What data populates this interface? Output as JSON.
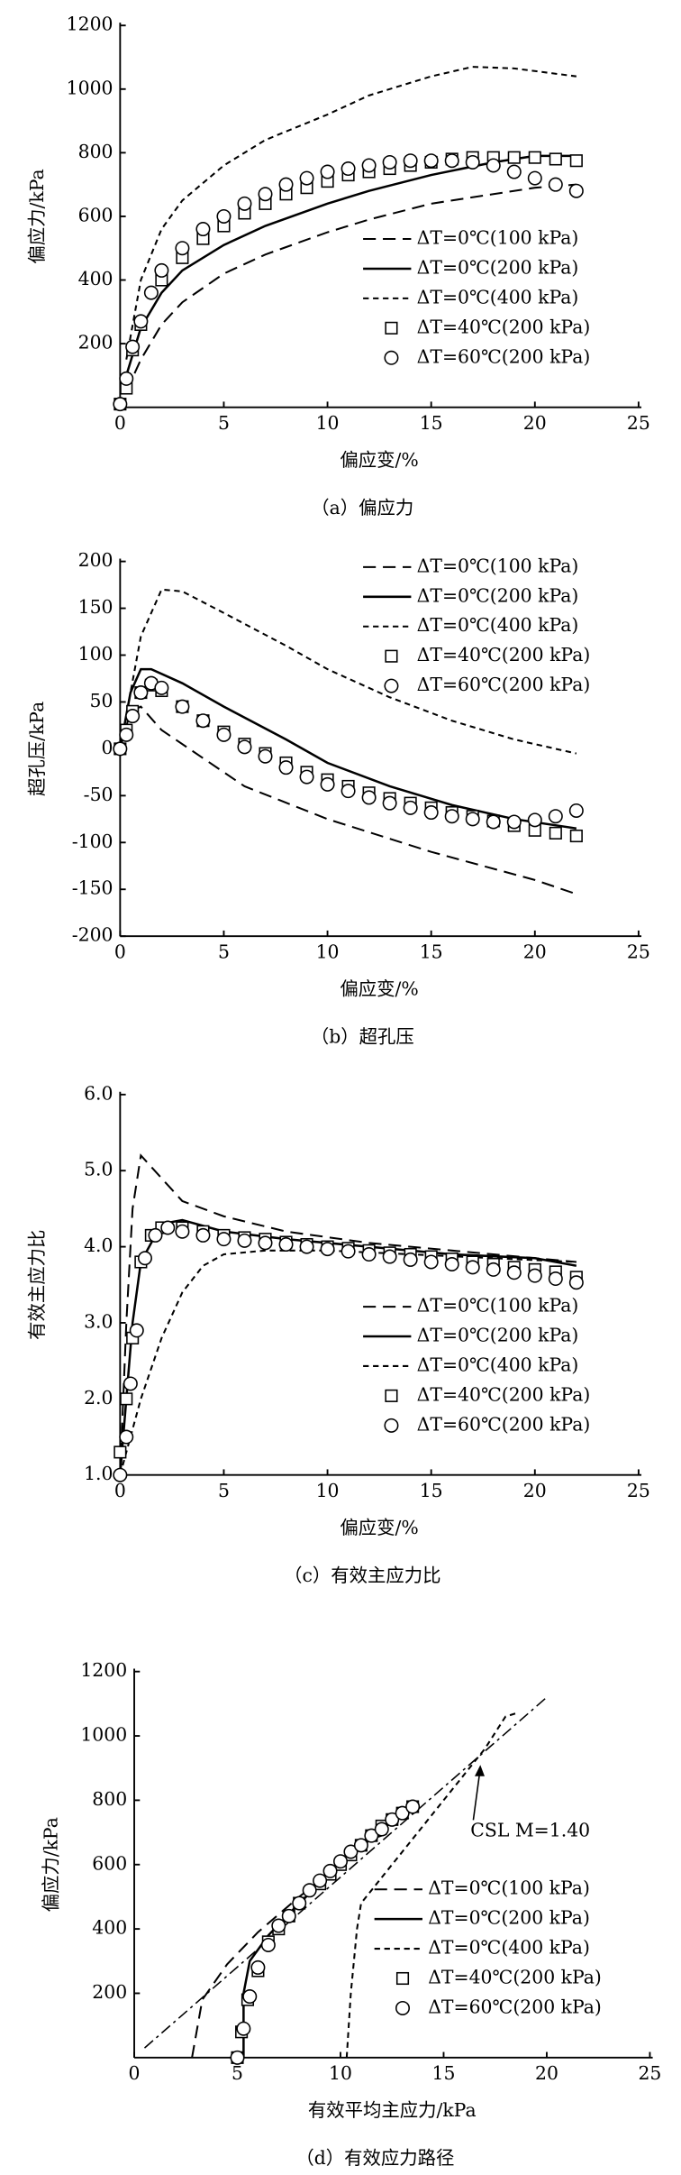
{
  "chart_data": [
    {
      "type": "line",
      "caption": "（a）偏应力",
      "xlabel": "偏应变/%",
      "ylabel": "偏应力/kPa",
      "xlim": [
        0,
        25
      ],
      "ylim": [
        0,
        1200
      ],
      "xticks": [
        0,
        5,
        10,
        15,
        20,
        25
      ],
      "yticks": [
        200,
        400,
        600,
        800,
        1000,
        1200
      ],
      "legend": "lower right",
      "color": "#000000",
      "series": [
        {
          "name": "ΔT=0℃(100 kPa)",
          "linestyle": "long-dash",
          "x": [
            0.3,
            1,
            2,
            3,
            5,
            7,
            10,
            12,
            15,
            18,
            20,
            22
          ],
          "values": [
            50,
            150,
            260,
            330,
            420,
            480,
            550,
            590,
            640,
            670,
            690,
            700
          ]
        },
        {
          "name": "ΔT=0℃(200 kPa)",
          "linestyle": "solid",
          "x": [
            0.3,
            1,
            2,
            3,
            5,
            7,
            10,
            12,
            15,
            18,
            20,
            22
          ],
          "values": [
            100,
            250,
            360,
            430,
            510,
            570,
            640,
            680,
            730,
            770,
            790,
            790
          ]
        },
        {
          "name": "ΔT=0℃(400 kPa)",
          "linestyle": "short-dash",
          "x": [
            0.3,
            1,
            2,
            3,
            5,
            7,
            10,
            12,
            15,
            17,
            19,
            22
          ],
          "values": [
            150,
            400,
            560,
            650,
            760,
            840,
            920,
            980,
            1040,
            1070,
            1065,
            1040
          ]
        },
        {
          "name": "ΔT=40℃(200 kPa)",
          "marker": "square",
          "x": [
            0,
            0.3,
            0.6,
            1,
            2,
            3,
            4,
            5,
            6,
            7,
            8,
            9,
            10,
            11,
            12,
            13,
            14,
            15,
            16,
            17,
            18,
            19,
            20,
            21,
            22
          ],
          "values": [
            10,
            60,
            180,
            260,
            400,
            470,
            530,
            570,
            610,
            640,
            670,
            690,
            710,
            730,
            740,
            750,
            760,
            770,
            780,
            785,
            785,
            785,
            785,
            780,
            775
          ]
        },
        {
          "name": "ΔT=60℃(200 kPa)",
          "marker": "circle",
          "x": [
            0,
            0.3,
            0.6,
            1,
            1.5,
            2,
            3,
            4,
            5,
            6,
            7,
            8,
            9,
            10,
            11,
            12,
            13,
            14,
            15,
            16,
            17,
            18,
            19,
            20,
            21,
            22
          ],
          "values": [
            10,
            90,
            190,
            270,
            360,
            430,
            500,
            560,
            600,
            640,
            670,
            700,
            720,
            740,
            750,
            760,
            770,
            775,
            775,
            775,
            770,
            760,
            740,
            720,
            700,
            680
          ]
        }
      ]
    },
    {
      "type": "line",
      "caption": "（b）超孔压",
      "xlabel": "偏应变/%",
      "ylabel": "超孔压/kPa",
      "xlim": [
        0,
        25
      ],
      "ylim": [
        -200,
        200
      ],
      "xticks": [
        0,
        5,
        10,
        15,
        20,
        25
      ],
      "yticks": [
        -200,
        -150,
        -100,
        -50,
        0,
        50,
        100,
        150,
        200
      ],
      "legend": "upper right",
      "color": "#000000",
      "series": [
        {
          "name": "ΔT=0℃(100 kPa)",
          "linestyle": "long-dash",
          "x": [
            0,
            0.5,
            1,
            2,
            4,
            6,
            10,
            15,
            20,
            22
          ],
          "values": [
            0,
            40,
            45,
            20,
            -10,
            -40,
            -75,
            -110,
            -140,
            -155
          ]
        },
        {
          "name": "ΔT=0℃(200 kPa)",
          "linestyle": "solid",
          "x": [
            0,
            0.5,
            1,
            1.5,
            3,
            5,
            8,
            10,
            13,
            16,
            19,
            22
          ],
          "values": [
            0,
            60,
            85,
            85,
            70,
            45,
            10,
            -15,
            -40,
            -60,
            -75,
            -85
          ]
        },
        {
          "name": "ΔT=0℃(400 kPa)",
          "linestyle": "short-dash",
          "x": [
            0,
            0.5,
            1,
            2,
            3,
            5,
            8,
            10,
            13,
            16,
            19,
            22
          ],
          "values": [
            0,
            60,
            120,
            170,
            168,
            145,
            110,
            85,
            55,
            30,
            10,
            -5
          ]
        },
        {
          "name": "ΔT=40℃(200 kPa)",
          "marker": "square",
          "x": [
            0,
            0.3,
            0.6,
            1,
            1.5,
            2,
            3,
            4,
            5,
            6,
            7,
            8,
            9,
            10,
            11,
            12,
            13,
            14,
            15,
            16,
            17,
            18,
            19,
            20,
            21,
            22
          ],
          "values": [
            0,
            20,
            40,
            60,
            68,
            62,
            45,
            30,
            18,
            5,
            -5,
            -15,
            -25,
            -33,
            -40,
            -47,
            -53,
            -58,
            -63,
            -68,
            -72,
            -77,
            -82,
            -87,
            -90,
            -93
          ]
        },
        {
          "name": "ΔT=60℃(200 kPa)",
          "marker": "circle",
          "x": [
            0,
            0.3,
            0.6,
            1,
            1.5,
            2,
            3,
            4,
            5,
            6,
            7,
            8,
            9,
            10,
            11,
            12,
            13,
            14,
            15,
            16,
            17,
            18,
            19,
            20,
            21,
            22
          ],
          "values": [
            0,
            15,
            35,
            60,
            70,
            65,
            45,
            30,
            15,
            2,
            -8,
            -20,
            -30,
            -38,
            -45,
            -52,
            -58,
            -63,
            -68,
            -72,
            -75,
            -78,
            -78,
            -76,
            -72,
            -66
          ]
        }
      ]
    },
    {
      "type": "line",
      "caption": "（c）有效主应力比",
      "xlabel": "偏应变/%",
      "ylabel": "有效主应力比",
      "xlim": [
        0,
        25
      ],
      "ylim": [
        1,
        6
      ],
      "xticks": [
        0,
        5,
        10,
        15,
        20,
        25
      ],
      "yticks": [
        {
          "value": 1,
          "label": "1.0"
        },
        {
          "value": 2,
          "label": "2.0"
        },
        {
          "value": 3,
          "label": "3.0"
        },
        {
          "value": 4,
          "label": "4.0"
        },
        {
          "value": 5,
          "label": "5.0"
        },
        {
          "value": 6,
          "label": "6.0"
        }
      ],
      "legend": "lower right",
      "color": "#000000",
      "series": [
        {
          "name": "ΔT=0℃(100 kPa)",
          "linestyle": "long-dash",
          "x": [
            0,
            0.3,
            0.6,
            1,
            2,
            3,
            5,
            8,
            12,
            16,
            20,
            22
          ],
          "values": [
            1,
            3,
            4.5,
            5.2,
            4.9,
            4.6,
            4.4,
            4.2,
            4.05,
            3.95,
            3.85,
            3.8
          ]
        },
        {
          "name": "ΔT=0℃(200 kPa)",
          "linestyle": "solid",
          "x": [
            0,
            0.3,
            0.6,
            1,
            2,
            3,
            5,
            8,
            12,
            16,
            20,
            22
          ],
          "values": [
            1,
            2,
            3,
            3.8,
            4.3,
            4.35,
            4.2,
            4.1,
            4.0,
            3.9,
            3.85,
            3.75
          ]
        },
        {
          "name": "ΔT=0℃(400 kPa)",
          "linestyle": "short-dash",
          "x": [
            0,
            0.5,
            1,
            2,
            3,
            4,
            5,
            7,
            10,
            14,
            18,
            22
          ],
          "values": [
            1,
            1.5,
            2,
            2.8,
            3.4,
            3.75,
            3.9,
            3.95,
            3.95,
            3.9,
            3.85,
            3.8
          ]
        },
        {
          "name": "ΔT=40℃(200 kPa)",
          "marker": "square",
          "x": [
            0,
            0.3,
            0.6,
            1,
            1.5,
            2,
            3,
            4,
            5,
            6,
            7,
            8,
            9,
            10,
            11,
            12,
            13,
            14,
            15,
            16,
            17,
            18,
            19,
            20,
            21,
            22
          ],
          "values": [
            1.3,
            2.0,
            2.8,
            3.8,
            4.15,
            4.25,
            4.25,
            4.2,
            4.15,
            4.12,
            4.1,
            4.06,
            4.03,
            4.0,
            3.98,
            3.95,
            3.92,
            3.9,
            3.87,
            3.84,
            3.8,
            3.77,
            3.73,
            3.7,
            3.67,
            3.6
          ]
        },
        {
          "name": "ΔT=60℃(200 kPa)",
          "marker": "circle",
          "x": [
            0,
            0.3,
            0.5,
            0.8,
            1.2,
            1.7,
            2.3,
            3,
            4,
            5,
            6,
            7,
            8,
            9,
            10,
            11,
            12,
            13,
            14,
            15,
            16,
            17,
            18,
            19,
            20,
            21,
            22
          ],
          "values": [
            1.0,
            1.5,
            2.2,
            2.9,
            3.85,
            4.15,
            4.25,
            4.2,
            4.15,
            4.1,
            4.08,
            4.05,
            4.03,
            4.0,
            3.97,
            3.94,
            3.9,
            3.87,
            3.83,
            3.8,
            3.77,
            3.73,
            3.7,
            3.66,
            3.62,
            3.58,
            3.53
          ]
        }
      ]
    },
    {
      "type": "line",
      "caption": "（d）有效应力路径",
      "xlabel": "有效平均主应力/kPa",
      "ylabel": "偏应力/kPa",
      "xlim": [
        0,
        25
      ],
      "ylim": [
        0,
        1200
      ],
      "xticks": [
        0,
        5,
        10,
        15,
        20,
        25
      ],
      "yticks": [
        200,
        400,
        600,
        800,
        1000,
        1200
      ],
      "legend": "lower right",
      "color": "#000000",
      "reference_line": {
        "label": "CSL M=1.40",
        "linestyle": "dash-dot",
        "x": [
          0.5,
          20
        ],
        "values": [
          30,
          1120
        ]
      },
      "series": [
        {
          "name": "ΔT=0℃(100 kPa)",
          "linestyle": "long-dash",
          "x": [
            2.8,
            3.3,
            4.5,
            6,
            8,
            10,
            11.5,
            12.5
          ],
          "values": [
            0,
            180,
            290,
            390,
            500,
            600,
            680,
            700
          ]
        },
        {
          "name": "ΔT=0℃(200 kPa)",
          "linestyle": "solid",
          "x": [
            5.3,
            5.3,
            5.6,
            6.5,
            8,
            10,
            12,
            13.5
          ],
          "values": [
            0,
            200,
            300,
            380,
            480,
            600,
            720,
            790
          ]
        },
        {
          "name": "ΔT=0℃(400 kPa)",
          "linestyle": "short-dash",
          "x": [
            10.3,
            10.5,
            10.8,
            11,
            12,
            13,
            14,
            15,
            16,
            17,
            18,
            18.5
          ],
          "values": [
            0,
            200,
            400,
            480,
            560,
            640,
            720,
            800,
            880,
            960,
            1060,
            1070
          ]
        },
        {
          "name": "ΔT=40℃(200 kPa)",
          "marker": "square",
          "x": [
            5,
            5.2,
            5.5,
            6,
            6.5,
            7,
            7.5,
            8,
            9,
            9.5,
            10,
            10.5,
            11,
            11.5,
            12,
            12.5,
            13,
            13.5
          ],
          "values": [
            0,
            80,
            180,
            270,
            360,
            400,
            440,
            480,
            540,
            570,
            600,
            630,
            660,
            690,
            720,
            740,
            760,
            780
          ]
        },
        {
          "name": "ΔT=60℃(200 kPa)",
          "marker": "circle",
          "x": [
            5,
            5.3,
            5.6,
            6,
            6.5,
            7,
            7.5,
            8,
            8.5,
            9,
            9.5,
            10,
            10.5,
            11,
            11.5,
            12,
            12.5,
            13,
            13.5
          ],
          "values": [
            0,
            90,
            190,
            280,
            350,
            410,
            440,
            480,
            520,
            550,
            580,
            610,
            640,
            660,
            690,
            710,
            740,
            760,
            780
          ]
        }
      ]
    }
  ]
}
